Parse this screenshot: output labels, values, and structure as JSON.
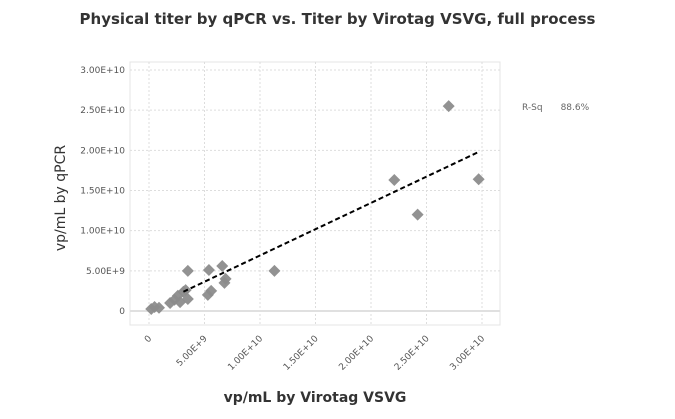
{
  "chart_data": {
    "type": "scatter",
    "title": "Physical titer by qPCR vs. Titer by Virotag VSVG, full process",
    "xlabel": "vp/mL by Virotag VSVG",
    "ylabel": "vp/mL by qPCR",
    "xlim": [
      -1500000000.0,
      32000000000.0
    ],
    "ylim": [
      -1800000000.0,
      31000000000.0
    ],
    "xticks": [
      0,
      5000000000.0,
      10000000000.0,
      15000000000.0,
      20000000000.0,
      25000000000.0,
      30000000000.0
    ],
    "xtick_labels": [
      "0",
      "5.00E+9",
      "1.00E+10",
      "1.50E+10",
      "2.00E+10",
      "2.50E+10",
      "3.00E+10"
    ],
    "yticks": [
      0,
      5000000000.0,
      10000000000.0,
      15000000000.0,
      20000000000.0,
      25000000000.0,
      30000000000.0
    ],
    "ytick_labels": [
      "0",
      "5.00E+9",
      "1.00E+10",
      "1.50E+10",
      "2.00E+10",
      "2.50E+10",
      "3.00E+10"
    ],
    "grid": true,
    "marker": "diamond",
    "marker_color": "#8c8c8c",
    "points": [
      [
        200000000.0,
        250000000.0
      ],
      [
        500000000.0,
        500000000.0
      ],
      [
        900000000.0,
        400000000.0
      ],
      [
        1900000000.0,
        1000000000.0
      ],
      [
        2300000000.0,
        1400000000.0
      ],
      [
        2600000000.0,
        1900000000.0
      ],
      [
        2800000000.0,
        1100000000.0
      ],
      [
        3100000000.0,
        2400000000.0
      ],
      [
        3300000000.0,
        2600000000.0
      ],
      [
        3500000000.0,
        1500000000.0
      ],
      [
        3500000000.0,
        5000000000.0
      ],
      [
        5300000000.0,
        2000000000.0
      ],
      [
        5400000000.0,
        5100000000.0
      ],
      [
        5600000000.0,
        2500000000.0
      ],
      [
        6600000000.0,
        5600000000.0
      ],
      [
        6900000000.0,
        4000000000.0
      ],
      [
        6800000000.0,
        3500000000.0
      ],
      [
        11300000000.0,
        5000000000.0
      ],
      [
        22100000000.0,
        16300000000.0
      ],
      [
        24200000000.0,
        12000000000.0
      ],
      [
        27000000000.0,
        25500000000.0
      ],
      [
        29700000000.0,
        16400000000.0
      ]
    ],
    "trendline": {
      "type": "linear",
      "x": [
        3100000000.0,
        29700000000.0
      ],
      "y": [
        2400000000.0,
        19800000000.0
      ],
      "style": "dashed",
      "color": "#000000"
    },
    "stats": {
      "label": "R-Sq",
      "value": "88.6%"
    }
  }
}
